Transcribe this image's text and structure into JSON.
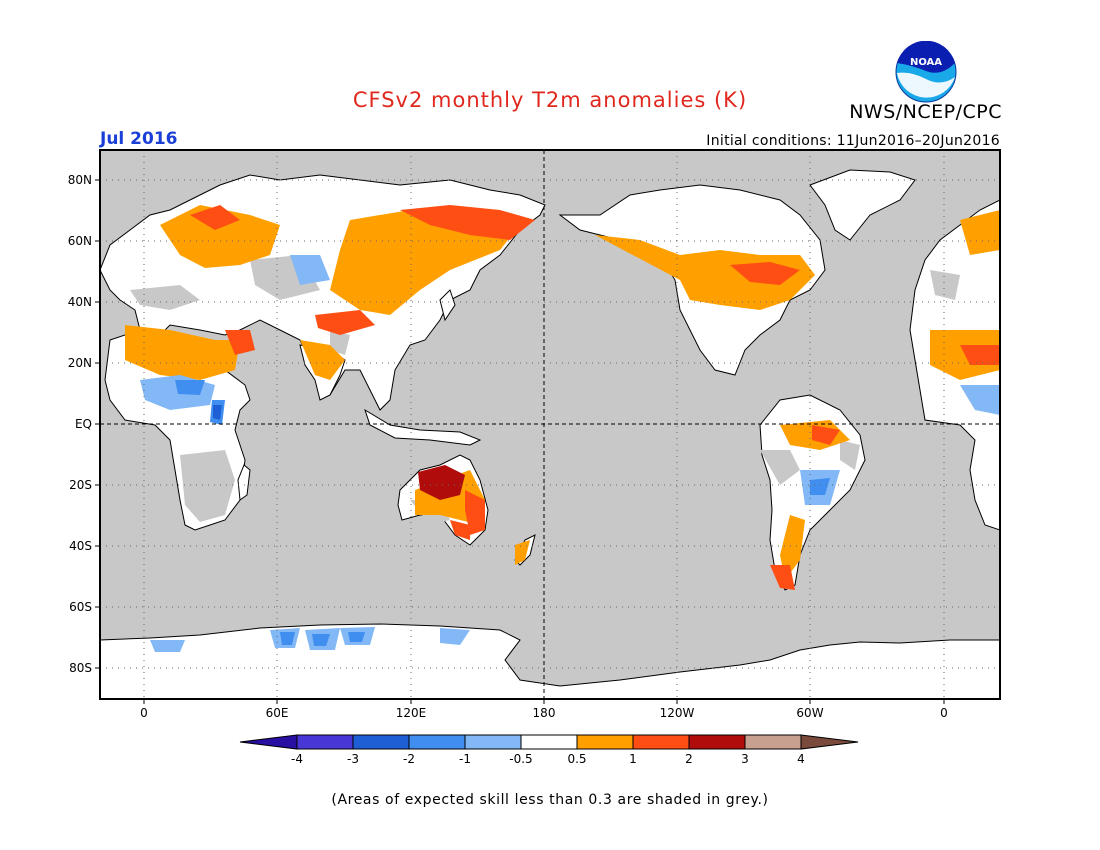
{
  "title": "CFSv2 monthly T2m anomalies (K)",
  "organization": "NWS/NCEP/CPC",
  "logo_text": "NOAA",
  "month_label": "Jul 2016",
  "initial_conditions": "Initial conditions: 11Jun2016–20Jun2016",
  "footnote": "(Areas of expected skill less than 0.3 are shaded in grey.)",
  "map": {
    "projection": "cylindrical-equidistant",
    "center_longitude": "180",
    "latitude_labels": [
      "80N",
      "60N",
      "40N",
      "20N",
      "EQ",
      "20S",
      "40S",
      "60S",
      "80S"
    ],
    "longitude_labels": [
      "0",
      "60E",
      "120E",
      "180",
      "120W",
      "60W",
      "0"
    ],
    "colors": {
      "ocean_grey": "#c8c8c8",
      "land_white": "#ffffff",
      "coast": "#000000"
    }
  },
  "colorbar": {
    "labels": [
      "-4",
      "-3",
      "-2",
      "-1",
      "-0.5",
      "0.5",
      "1",
      "2",
      "3",
      "4"
    ],
    "colors": [
      "#2a0fa3",
      "#4936d6",
      "#1f5fd6",
      "#3f8ef0",
      "#82b8f5",
      "#ffffff",
      "#ffa000",
      "#ff4e14",
      "#b00c0c",
      "#c8a090",
      "#7a4a3c"
    ]
  }
}
